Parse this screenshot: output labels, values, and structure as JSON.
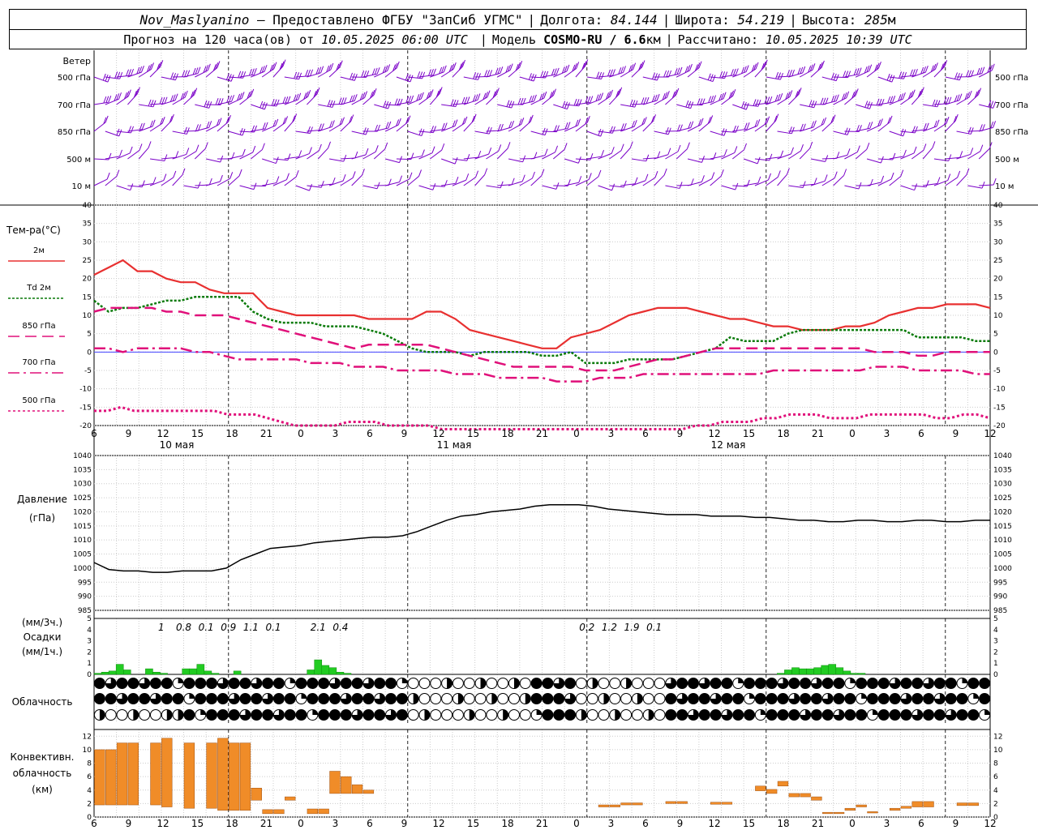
{
  "header": {
    "station": "Nov_Maslyanino",
    "provider": "— Предоставлено ФГБУ \"ЗапСиб УГМС\"",
    "lon_label": "Долгота:",
    "lon_value": "84.144",
    "lat_label": "Широта:",
    "lat_value": "54.219",
    "alt_label": "Высота:",
    "alt_value": "285",
    "alt_unit": "м",
    "forecast_label": "Прогноз на 120 часа(ов) от",
    "forecast_time": "10.05.2025 06:00 UTC",
    "model_label": "Модель",
    "model_name": "COSMO-RU / 6.6",
    "model_unit": "км",
    "calc_label": "Рассчитано:",
    "calc_time": "10.05.2025 10:39 UTC"
  },
  "labels": {
    "wind": "Ветер",
    "wind_levels": [
      "500 гПа",
      "700 гПа",
      "850 гПа",
      "500 м",
      "10 м"
    ],
    "temp_title": "Тем-ра(°С)",
    "temp_legend": [
      "2м",
      "Td 2м",
      "850 гПа",
      "700 гПа",
      "500 гПа"
    ],
    "pressure_title": "Давление",
    "pressure_unit": "(гПа)",
    "precip_units_top": "(мм/3ч.)",
    "precip_title": "Осадки",
    "precip_units_bottom": "(мм/1ч.)",
    "cloud_title": "Облачность",
    "conv_title_1": "Конвективн.",
    "conv_title_2": "облачность",
    "conv_unit": "(км)",
    "days": [
      "10 мая",
      "11 мая",
      "12 мая"
    ]
  },
  "colors": {
    "wind": "#7a00c8",
    "t2m": "#e83030",
    "td2m": "#0a7a0a",
    "t850": "#e0107a",
    "t700": "#e0107a",
    "t500": "#e0107a",
    "pressure": "#000000",
    "precip": "#22cc22",
    "conv": "#f08c28",
    "zero_line": "#4040ff"
  },
  "chart_data": [
    {
      "type": "line",
      "title": "Тем-ра(°С)",
      "x_hours": [
        0,
        1,
        2,
        3,
        4,
        5,
        6,
        7,
        8,
        9,
        10,
        11,
        12,
        13,
        14,
        15,
        16,
        17,
        18,
        19,
        20,
        21,
        22,
        23,
        24,
        25,
        26,
        27,
        28,
        29,
        30,
        31,
        32,
        33,
        34,
        35,
        36,
        37,
        38,
        39,
        40,
        41,
        42,
        43,
        44,
        45,
        46,
        47,
        48,
        49,
        50,
        51,
        52,
        53,
        54,
        55,
        56,
        57,
        58,
        59,
        60,
        61,
        62,
        63,
        64,
        65,
        66,
        67,
        68,
        69,
        70,
        71,
        72,
        73,
        74,
        75,
        76,
        77,
        78,
        79
      ],
      "x_ticks": [
        "6",
        "9",
        "12",
        "15",
        "18",
        "21",
        "0",
        "3",
        "6",
        "9",
        "12",
        "15",
        "18",
        "21",
        "0",
        "3",
        "6",
        "9",
        "12",
        "15",
        "18",
        "21",
        "0",
        "3",
        "6",
        "9",
        "12"
      ],
      "ylim": [
        -20,
        40
      ],
      "y_ticks": [
        -20,
        -15,
        -10,
        -5,
        0,
        5,
        10,
        15,
        20,
        25,
        30,
        35,
        40
      ],
      "series": [
        {
          "name": "2м",
          "values": [
            21,
            23,
            25,
            22,
            22,
            20,
            19,
            19,
            17,
            16,
            16,
            16,
            12,
            11,
            10,
            10,
            10,
            10,
            10,
            9,
            9,
            9,
            9,
            11,
            11,
            9,
            6,
            5,
            4,
            3,
            2,
            1,
            1,
            4,
            5,
            6,
            8,
            10,
            11,
            12,
            12,
            12,
            11,
            10,
            9,
            9,
            8,
            7,
            7,
            6,
            6,
            6,
            7,
            7,
            8,
            10,
            11,
            12,
            12,
            13,
            13,
            13,
            12
          ]
        },
        {
          "name": "Td 2м",
          "values": [
            14,
            11,
            12,
            12,
            13,
            14,
            14,
            15,
            15,
            15,
            15,
            11,
            9,
            8,
            8,
            8,
            7,
            7,
            7,
            6,
            5,
            3,
            1,
            0,
            0,
            0,
            -1,
            0,
            0,
            0,
            0,
            -1,
            -1,
            0,
            -3,
            -3,
            -3,
            -2,
            -2,
            -2,
            -2,
            -1,
            0,
            1,
            4,
            3,
            3,
            3,
            5,
            6,
            6,
            6,
            6,
            6,
            6,
            6,
            6,
            4,
            4,
            4,
            4,
            3,
            3
          ]
        },
        {
          "name": "850 гПа",
          "values": [
            11,
            12,
            12,
            12,
            12,
            11,
            11,
            10,
            10,
            10,
            9,
            8,
            7,
            6,
            5,
            4,
            3,
            2,
            1,
            2,
            2,
            2,
            2,
            2,
            1,
            0,
            -1,
            -2,
            -3,
            -4,
            -4,
            -4,
            -4,
            -4,
            -5,
            -5,
            -5,
            -4,
            -3,
            -2,
            -2,
            -1,
            0,
            1,
            1,
            1,
            1,
            1,
            1,
            1,
            1,
            1,
            1,
            1,
            0,
            0,
            0,
            -1,
            -1,
            0,
            0,
            0,
            0
          ]
        },
        {
          "name": "700 гПа",
          "values": [
            1,
            1,
            0,
            1,
            1,
            1,
            1,
            0,
            0,
            -1,
            -2,
            -2,
            -2,
            -2,
            -2,
            -3,
            -3,
            -3,
            -4,
            -4,
            -4,
            -5,
            -5,
            -5,
            -5,
            -6,
            -6,
            -6,
            -7,
            -7,
            -7,
            -7,
            -8,
            -8,
            -8,
            -7,
            -7,
            -7,
            -6,
            -6,
            -6,
            -6,
            -6,
            -6,
            -6,
            -6,
            -6,
            -5,
            -5,
            -5,
            -5,
            -5,
            -5,
            -5,
            -4,
            -4,
            -4,
            -5,
            -5,
            -5,
            -5,
            -6,
            -6
          ]
        },
        {
          "name": "500 гПа",
          "values": [
            -16,
            -16,
            -15,
            -16,
            -16,
            -16,
            -16,
            -16,
            -16,
            -16,
            -17,
            -17,
            -17,
            -18,
            -19,
            -20,
            -20,
            -20,
            -20,
            -19,
            -19,
            -19,
            -20,
            -20,
            -20,
            -20,
            -21,
            -21,
            -21,
            -21,
            -21,
            -21,
            -21,
            -21,
            -21,
            -21,
            -21,
            -21,
            -21,
            -21,
            -21,
            -21,
            -21,
            -21,
            -21,
            -20,
            -20,
            -19,
            -19,
            -19,
            -18,
            -18,
            -17,
            -17,
            -17,
            -18,
            -18,
            -18,
            -17,
            -17,
            -17,
            -17,
            -17,
            -18,
            -18,
            -17,
            -17,
            -18
          ]
        }
      ]
    },
    {
      "type": "line",
      "title": "Давление",
      "ylabel": "(гПа)",
      "ylim": [
        985,
        1040
      ],
      "y_ticks": [
        985,
        990,
        995,
        1000,
        1005,
        1010,
        1015,
        1020,
        1025,
        1030,
        1035,
        1040
      ],
      "series": [
        {
          "name": "Давление",
          "values": [
            1002,
            999.5,
            999,
            999,
            998.5,
            998.5,
            999,
            999,
            999,
            1000,
            1003,
            1005,
            1007,
            1007.5,
            1008,
            1009,
            1009.5,
            1010,
            1010.5,
            1011,
            1011,
            1011.5,
            1013,
            1015,
            1017,
            1018.5,
            1019,
            1020,
            1020.5,
            1021,
            1022,
            1022.5,
            1022.5,
            1022.5,
            1022,
            1021,
            1020.5,
            1020,
            1019.5,
            1019,
            1019,
            1019,
            1018.5,
            1018.5,
            1018.5,
            1018,
            1018,
            1017.5,
            1017,
            1017,
            1016.5,
            1016.5,
            1017,
            1017,
            1016.5,
            1016.5,
            1017,
            1017,
            1016.5,
            1016.5,
            1017,
            1017
          ]
        }
      ]
    },
    {
      "type": "bar",
      "title": "Осадки",
      "ylim": [
        0,
        5
      ],
      "y_ticks": [
        0,
        1,
        2,
        3,
        4,
        5
      ],
      "labels_3h": [
        {
          "hour": 9,
          "text": "1"
        },
        {
          "hour": 12,
          "text": "0.8"
        },
        {
          "hour": 15,
          "text": "0.1"
        },
        {
          "hour": 18,
          "text": "0.9"
        },
        {
          "hour": 21,
          "text": "1.1"
        },
        {
          "hour": 24,
          "text": "0.1"
        },
        {
          "hour": 30,
          "text": "2.1"
        },
        {
          "hour": 33,
          "text": "0.4"
        },
        {
          "hour": 66,
          "text": "0.2"
        },
        {
          "hour": 69,
          "text": "1.2"
        },
        {
          "hour": 72,
          "text": "1.9"
        },
        {
          "hour": 75,
          "text": "0.1"
        }
      ],
      "hourly_values": [
        0.1,
        0.2,
        0.3,
        0.9,
        0.4,
        0,
        0,
        0.5,
        0.2,
        0.1,
        0,
        0,
        0.5,
        0.5,
        0.9,
        0.3,
        0.1,
        0,
        0,
        0.3,
        0,
        0,
        0,
        0,
        0,
        0,
        0,
        0,
        0,
        0.4,
        1.3,
        0.8,
        0.6,
        0.2,
        0.1,
        0,
        0,
        0,
        0,
        0,
        0,
        0,
        0,
        0,
        0,
        0,
        0,
        0,
        0,
        0,
        0,
        0,
        0,
        0,
        0,
        0,
        0,
        0,
        0,
        0,
        0,
        0,
        0,
        0,
        0,
        0,
        0,
        0,
        0,
        0,
        0,
        0,
        0,
        0,
        0,
        0,
        0,
        0,
        0,
        0,
        0,
        0,
        0,
        0,
        0,
        0,
        0,
        0,
        0,
        0,
        0,
        0,
        0,
        0.1,
        0.4,
        0.6,
        0.5,
        0.5,
        0.6,
        0.8,
        0.9,
        0.6,
        0.3,
        0.1,
        0.1,
        0,
        0,
        0,
        0,
        0,
        0,
        0,
        0,
        0,
        0,
        0,
        0,
        0,
        0,
        0,
        0,
        0
      ]
    },
    {
      "type": "bar",
      "title": "Конвективн. облачность",
      "ylabel": "(км)",
      "ylim": [
        0,
        13
      ],
      "y_ticks": [
        0,
        2,
        4,
        6,
        8,
        10,
        12
      ],
      "bars": [
        [
          0,
          1.8,
          10
        ],
        [
          1,
          1.8,
          10
        ],
        [
          2,
          1.8,
          11
        ],
        [
          3,
          1.8,
          11
        ],
        [
          5,
          1.8,
          11
        ],
        [
          6,
          1.5,
          11.7
        ],
        [
          8,
          1.3,
          11
        ],
        [
          10,
          1.3,
          11
        ],
        [
          11,
          1.0,
          11.7
        ],
        [
          12,
          1.0,
          11
        ],
        [
          13,
          1.0,
          11
        ],
        [
          14,
          2.5,
          4.3
        ],
        [
          15,
          0.5,
          1.1
        ],
        [
          16,
          0.5,
          1.1
        ],
        [
          17,
          2.5,
          3.0
        ],
        [
          19,
          0.5,
          1.2
        ],
        [
          20,
          0.5,
          1.2
        ],
        [
          21,
          3.5,
          6.8
        ],
        [
          22,
          3.5,
          6.0
        ],
        [
          23,
          3.5,
          4.8
        ],
        [
          24,
          3.5,
          4.0
        ],
        [
          45,
          1.5,
          1.8
        ],
        [
          46,
          1.5,
          1.8
        ],
        [
          47,
          1.8,
          2.1
        ],
        [
          48,
          1.8,
          2.1
        ],
        [
          51,
          2.0,
          2.3
        ],
        [
          52,
          2.0,
          2.3
        ],
        [
          55,
          1.9,
          2.2
        ],
        [
          56,
          1.9,
          2.2
        ],
        [
          59,
          3.9,
          4.6
        ],
        [
          60,
          3.5,
          4.1
        ],
        [
          61,
          4.6,
          5.3
        ],
        [
          62,
          3.0,
          3.5
        ],
        [
          63,
          3.0,
          3.5
        ],
        [
          64,
          2.5,
          3.0
        ],
        [
          65,
          0.5,
          0.7
        ],
        [
          66,
          0.5,
          0.7
        ],
        [
          67,
          1.0,
          1.3
        ],
        [
          68,
          1.5,
          1.8
        ],
        [
          69,
          0.6,
          0.8
        ],
        [
          71,
          1.0,
          1.3
        ],
        [
          72,
          1.3,
          1.6
        ],
        [
          73,
          1.5,
          2.3
        ],
        [
          74,
          1.5,
          2.3
        ],
        [
          77,
          1.7,
          2.1
        ],
        [
          78,
          1.7,
          2.1
        ]
      ]
    }
  ]
}
